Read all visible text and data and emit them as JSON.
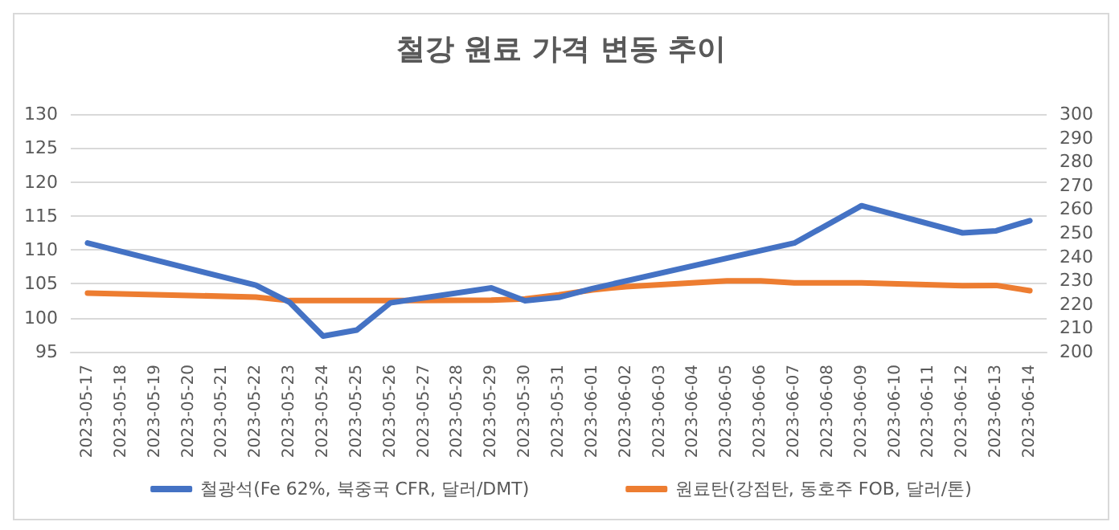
{
  "chart_data": {
    "type": "line",
    "title": "철강 원료 가격 변동 추이",
    "xlim": [
      "2023-05-16T12:00",
      "2023-06-14T12:00"
    ],
    "xticks": [
      "2023-05-17",
      "2023-05-18",
      "2023-05-19",
      "2023-05-20",
      "2023-05-21",
      "2023-05-22",
      "2023-05-23",
      "2023-05-24",
      "2023-05-25",
      "2023-05-26",
      "2023-05-27",
      "2023-05-28",
      "2023-05-29",
      "2023-05-30",
      "2023-05-31",
      "2023-06-01",
      "2023-06-02",
      "2023-06-03",
      "2023-06-04",
      "2023-06-05",
      "2023-06-06",
      "2023-06-07",
      "2023-06-08",
      "2023-06-09",
      "2023-06-10",
      "2023-06-11",
      "2023-06-12",
      "2023-06-13",
      "2023-06-14"
    ],
    "series": [
      {
        "name": "철광석(Fe 62%, 북중국 CFR, 달러/DMT)",
        "color": "#4472c4",
        "x": [
          "2023-05-17",
          "2023-05-22",
          "2023-05-23",
          "2023-05-24",
          "2023-05-25",
          "2023-05-26",
          "2023-05-29",
          "2023-05-30",
          "2023-05-31",
          "2023-06-01",
          "2023-06-07",
          "2023-06-09",
          "2023-06-12",
          "2023-06-13",
          "2023-06-14"
        ],
        "values": [
          111,
          104.8,
          102.3,
          97.3,
          98.2,
          102.2,
          104.4,
          102.5,
          103,
          104.3,
          111,
          116.5,
          112.5,
          112.8,
          114.3
        ]
      },
      {
        "name": "원료탄(강점탄, 동호주 FOB, 달러/톤)",
        "color": "#ed7d31",
        "axis": "y2",
        "x": [
          "2023-05-17",
          "2023-05-22",
          "2023-05-23",
          "2023-05-26",
          "2023-05-29",
          "2023-05-30",
          "2023-05-31",
          "2023-06-01",
          "2023-06-02",
          "2023-06-05",
          "2023-06-06",
          "2023-06-07",
          "2023-06-09",
          "2023-06-12",
          "2023-06-13",
          "2023-06-14"
        ],
        "values": [
          224.7,
          223,
          221.5,
          221.5,
          221.7,
          222.2,
          223.9,
          226,
          227.4,
          229.8,
          229.8,
          229,
          229,
          227.8,
          227.9,
          225.7
        ]
      }
    ],
    "ylim": [
      95,
      130
    ],
    "yticks": [
      95,
      100,
      105,
      110,
      115,
      120,
      125,
      130
    ],
    "y2lim": [
      200,
      300
    ],
    "y2ticks": [
      200,
      210,
      220,
      230,
      240,
      250,
      260,
      270,
      280,
      290,
      300
    ],
    "grid": "y",
    "legend": "bottom",
    "marker": "none",
    "line_style": "solid"
  }
}
